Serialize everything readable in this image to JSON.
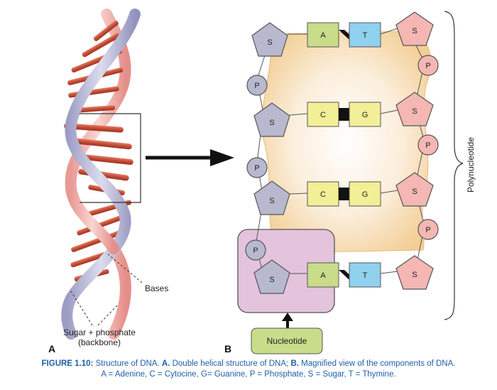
{
  "panel_a": {
    "letter": "A",
    "bases_label": "Bases",
    "backbone_label_line1": "Sugar + phosphate",
    "backbone_label_line2": "(backbone)"
  },
  "panel_b": {
    "letter": "B",
    "sugar": "S",
    "phosphate": "P",
    "pairs": [
      {
        "left": "A",
        "right": "T"
      },
      {
        "left": "C",
        "right": "G"
      },
      {
        "left": "C",
        "right": "G"
      },
      {
        "left": "A",
        "right": "T"
      }
    ],
    "nucleotide_label": "Nucleotide",
    "polynucleotide_label": "Polynucleotide"
  },
  "caption": {
    "figure_label": "FIGURE 1.10:",
    "text1": " Structure of DNA. ",
    "a_label": "A.",
    "a_text": " Double helical structure of DNA; ",
    "b_label": "B.",
    "b_text": " Magnified view of the components of DNA.",
    "line2": "A = Adenine, C = Cytocine, G= Guanine, P = Phosphate, S = Sugar, T = Thymine."
  },
  "colors": {
    "pink_strand": "#f2b8b4",
    "blue_strand": "#b9b9d8",
    "rung": "#c8553d",
    "sugar_grey": "#b8b9cf",
    "sugar_pink": "#f4b7b3",
    "base_green": "#c8dc8a",
    "base_blue": "#8fd1ee",
    "base_yellow": "#f2ef96",
    "backbone_bg": "#f6d9a8",
    "nucleotide_bg": "#e2bfda",
    "caption_blue": "#1f5fa8"
  }
}
